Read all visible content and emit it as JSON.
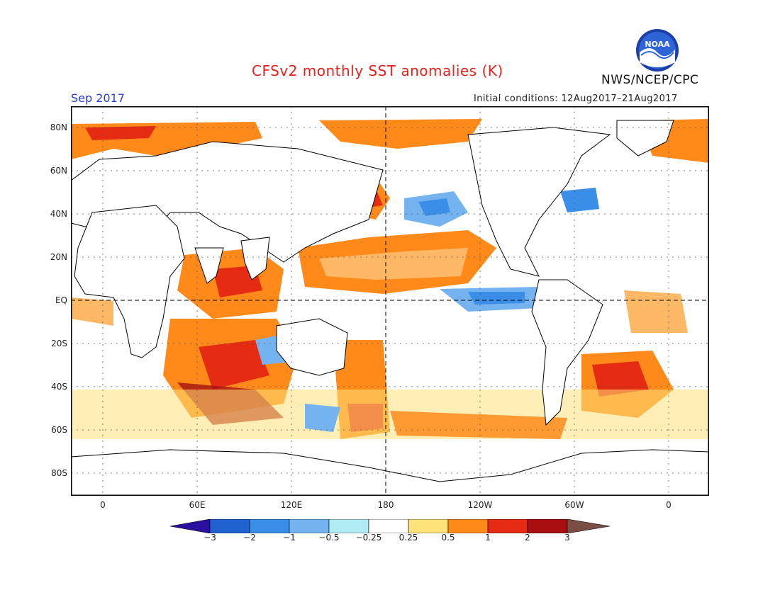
{
  "title": "CFSv2 monthly SST anomalies (K)",
  "agency": "NWS/NCEP/CPC",
  "logo_text": "NOAA",
  "valid_month": "Sep 2017",
  "initial_conditions": "Initial conditions: 12Aug2017–21Aug2017",
  "lat_labels": [
    "80N",
    "60N",
    "40N",
    "20N",
    "EQ",
    "20S",
    "40S",
    "60S",
    "80S"
  ],
  "lon_labels": [
    "0",
    "60E",
    "120E",
    "180",
    "120W",
    "60W",
    "0"
  ],
  "colorbar": {
    "ticks": [
      "−3",
      "−2",
      "−1",
      "−0.5",
      "−0.25",
      "0.25",
      "0.5",
      "1",
      "2",
      "3"
    ],
    "colors": [
      "#2a0fa0",
      "#1f62d0",
      "#3a8ee8",
      "#74b3f0",
      "#b0ecf2",
      "#ffffff",
      "#ffe27a",
      "#ff8a1a",
      "#e52b12",
      "#a80e0e",
      "#7a4d45"
    ]
  }
}
